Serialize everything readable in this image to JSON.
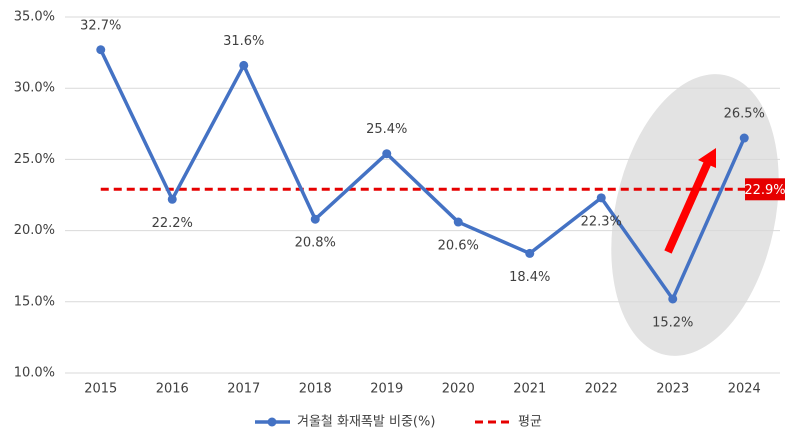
{
  "chart_data": {
    "type": "line",
    "categories": [
      "2015",
      "2016",
      "2017",
      "2018",
      "2019",
      "2020",
      "2021",
      "2022",
      "2023",
      "2024"
    ],
    "series": [
      {
        "name": "겨울철 화재폭발 비중(%)",
        "color": "#4472c4",
        "values": [
          32.7,
          22.2,
          31.6,
          20.8,
          25.4,
          20.6,
          18.4,
          22.3,
          15.2,
          26.5
        ],
        "value_labels": [
          "32.7%",
          "22.2%",
          "31.6%",
          "20.8%",
          "25.4%",
          "20.6%",
          "18.4%",
          "22.3%",
          "15.2%",
          "26.5%"
        ]
      }
    ],
    "average": {
      "name": "평균",
      "color": "#e60000",
      "value": 22.9,
      "value_label": "22.9%"
    },
    "ylim": [
      10,
      35
    ],
    "yticks": [
      {
        "value": 10,
        "label": "10.0%"
      },
      {
        "value": 15,
        "label": "15.0%"
      },
      {
        "value": 20,
        "label": "20.0%"
      },
      {
        "value": 25,
        "label": "25.0%"
      },
      {
        "value": 30,
        "label": "30.0%"
      },
      {
        "value": 35,
        "label": "35.0%"
      }
    ],
    "grid": true
  }
}
